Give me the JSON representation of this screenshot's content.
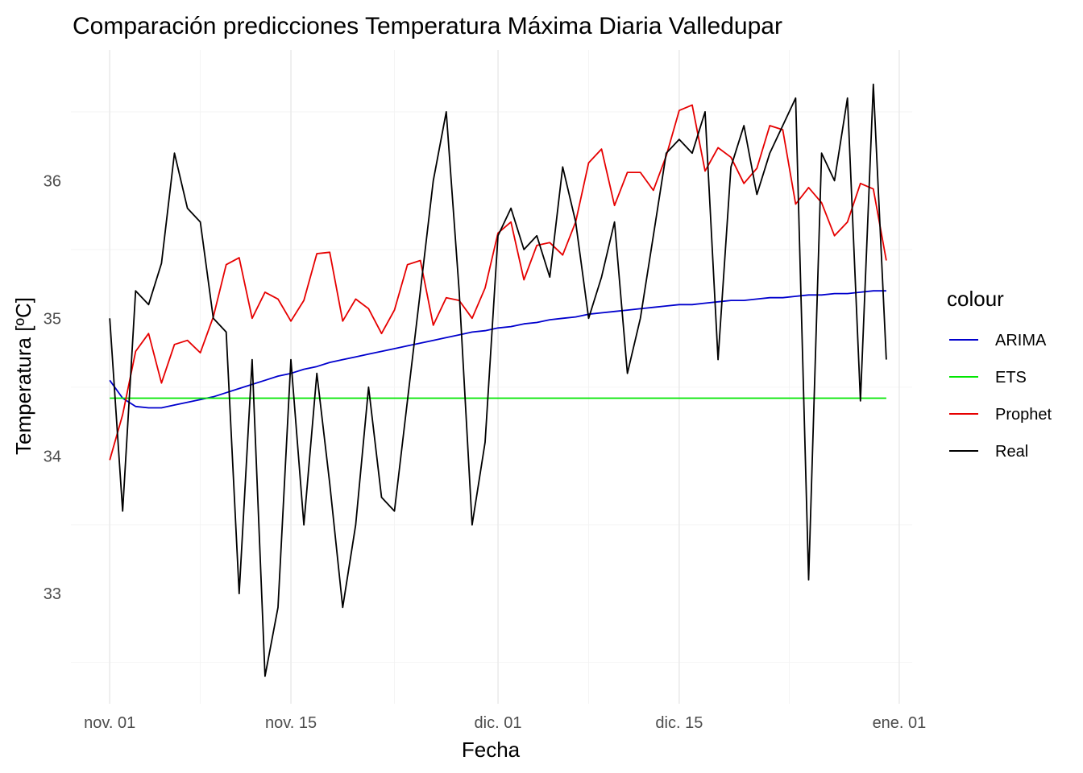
{
  "chart_data": {
    "type": "line",
    "title": "Comparación predicciones Temperatura Máxima Diaria Valledupar",
    "xlabel": "Fecha",
    "ylabel": "Temperatura [ºC]",
    "x_start": "2019-11-01",
    "x_end": "2019-12-31",
    "xlim": [
      "2019-10-29",
      "2020-01-02"
    ],
    "ylim": [
      32.2,
      36.95
    ],
    "y_ticks": [
      33,
      34,
      35,
      36
    ],
    "y_tick_labels": [
      "33",
      "34",
      "35",
      "36"
    ],
    "x_ticks": [
      "2019-11-01",
      "2019-11-15",
      "2019-12-01",
      "2019-12-15",
      "2020-01-01"
    ],
    "x_tick_labels": [
      "nov. 01",
      "nov. 15",
      "dic. 01",
      "dic. 15",
      "ene. 01"
    ],
    "grid": true,
    "legend": {
      "title": "colour",
      "position": "right"
    },
    "series": [
      {
        "name": "ARIMA",
        "color": "#0000cd",
        "values": [
          34.55,
          34.42,
          34.36,
          34.35,
          34.35,
          34.37,
          34.39,
          34.41,
          34.43,
          34.46,
          34.49,
          34.52,
          34.55,
          34.58,
          34.6,
          34.63,
          34.65,
          34.68,
          34.7,
          34.72,
          34.74,
          34.76,
          34.78,
          34.8,
          34.82,
          34.84,
          34.86,
          34.88,
          34.9,
          34.91,
          34.93,
          34.94,
          34.96,
          34.97,
          34.99,
          35.0,
          35.01,
          35.03,
          35.04,
          35.05,
          35.06,
          35.07,
          35.08,
          35.09,
          35.1,
          35.1,
          35.11,
          35.12,
          35.13,
          35.13,
          35.14,
          35.15,
          35.15,
          35.16,
          35.17,
          35.17,
          35.18,
          35.18,
          35.19,
          35.2,
          35.2
        ]
      },
      {
        "name": "ETS",
        "color": "#00e600",
        "values": [
          34.42,
          34.42,
          34.42,
          34.42,
          34.42,
          34.42,
          34.42,
          34.42,
          34.42,
          34.42,
          34.42,
          34.42,
          34.42,
          34.42,
          34.42,
          34.42,
          34.42,
          34.42,
          34.42,
          34.42,
          34.42,
          34.42,
          34.42,
          34.42,
          34.42,
          34.42,
          34.42,
          34.42,
          34.42,
          34.42,
          34.42,
          34.42,
          34.42,
          34.42,
          34.42,
          34.42,
          34.42,
          34.42,
          34.42,
          34.42,
          34.42,
          34.42,
          34.42,
          34.42,
          34.42,
          34.42,
          34.42,
          34.42,
          34.42,
          34.42,
          34.42,
          34.42,
          34.42,
          34.42,
          34.42,
          34.42,
          34.42,
          34.42,
          34.42,
          34.42,
          34.42
        ]
      },
      {
        "name": "Prophet",
        "color": "#e60000",
        "values": [
          33.97,
          34.3,
          34.76,
          34.89,
          34.53,
          34.81,
          34.84,
          34.75,
          35.01,
          35.39,
          35.44,
          35.0,
          35.19,
          35.14,
          34.98,
          35.13,
          35.47,
          35.48,
          34.98,
          35.14,
          35.07,
          34.89,
          35.06,
          35.39,
          35.42,
          34.95,
          35.15,
          35.13,
          35.0,
          35.22,
          35.62,
          35.7,
          35.28,
          35.53,
          35.55,
          35.46,
          35.7,
          36.13,
          36.23,
          35.82,
          36.06,
          36.06,
          35.93,
          36.18,
          36.51,
          36.55,
          36.07,
          36.24,
          36.17,
          35.98,
          36.09,
          36.4,
          36.37,
          35.83,
          35.95,
          35.84,
          35.6,
          35.7,
          35.98,
          35.94,
          35.42
        ]
      },
      {
        "name": "Real",
        "color": "#000000",
        "values": [
          35.0,
          33.6,
          35.2,
          35.1,
          35.4,
          36.2,
          35.8,
          35.7,
          35.0,
          34.9,
          33.0,
          34.7,
          32.4,
          32.9,
          34.7,
          33.5,
          34.6,
          33.8,
          32.9,
          33.5,
          34.5,
          33.7,
          33.6,
          34.4,
          35.2,
          36.0,
          36.5,
          35.2,
          33.5,
          34.1,
          35.6,
          35.8,
          35.5,
          35.6,
          35.3,
          36.1,
          35.7,
          35.0,
          35.3,
          35.7,
          34.6,
          35.0,
          35.6,
          36.2,
          36.3,
          36.2,
          36.5,
          34.7,
          36.1,
          36.4,
          35.9,
          36.2,
          36.4,
          36.6,
          33.1,
          36.2,
          36.0,
          36.6,
          34.4,
          36.7,
          34.7
        ]
      }
    ]
  }
}
